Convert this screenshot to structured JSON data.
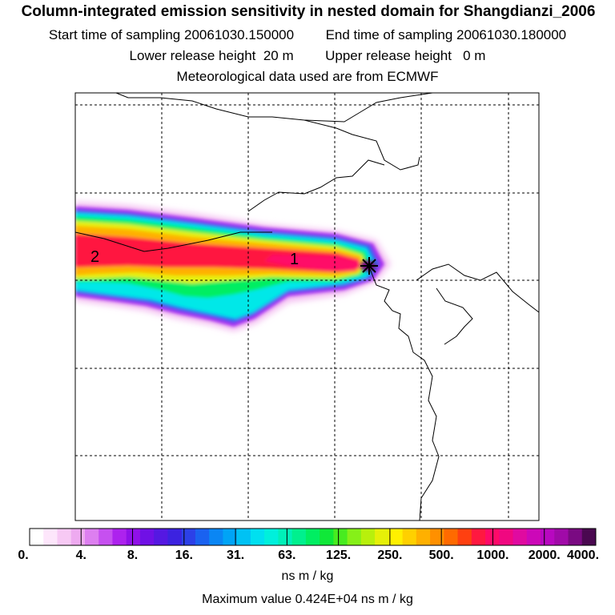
{
  "header": {
    "title": "Column-integrated emission sensitivity in nested domain for Shangdianzi_2006",
    "start_label": "Start time of sampling",
    "start_value": "20061030.150000",
    "end_label": "End time of sampling",
    "end_value": "20061030.180000",
    "lower_label": "Lower release height",
    "lower_value": "20 m",
    "upper_label": "Upper release height",
    "upper_value": "0 m",
    "met_line": "Meteorological data used are from ECMWF"
  },
  "chart_data": {
    "type": "heatmap",
    "title": "Column-integrated emission sensitivity in nested domain for Shangdianzi_2006",
    "quantity": "column-integrated emission sensitivity",
    "units": "ns m / kg",
    "scale": "logarithmic",
    "colorbar_ticks": [
      "0.",
      "4.",
      "8.",
      "16.",
      "31.",
      "63.",
      "125.",
      "250.",
      "500.",
      "1000.",
      "2000.",
      "4000."
    ],
    "colorbar_colors": [
      "#ffffff",
      "#fde6fb",
      "#f7c9f4",
      "#eeaaf0",
      "#dd7ff0",
      "#c650f0",
      "#ad22ee",
      "#9010e8",
      "#7010e6",
      "#5518e2",
      "#3c22e0",
      "#2c40e8",
      "#1a62f0",
      "#0a86f4",
      "#00a4f6",
      "#00c2f4",
      "#00e0f0",
      "#00f0dc",
      "#00f0b8",
      "#00f08e",
      "#00ee62",
      "#10e838",
      "#48ec20",
      "#86f018",
      "#b8f00c",
      "#e6f008",
      "#fff000",
      "#ffd000",
      "#ffb000",
      "#ff9000",
      "#ff6a00",
      "#ff4010",
      "#ff1840",
      "#ff0a68",
      "#f00880",
      "#e00aa0",
      "#cc08b8",
      "#b808c0",
      "#a00aa8",
      "#7a0a82",
      "#4a0850"
    ],
    "maximum_value": "0.424E+04",
    "max_line": "Maximum value  0.424E+04 ns m / kg",
    "units_line": "ns m / kg",
    "receptor": "Shangdianzi",
    "region_labels": [
      "2",
      "1"
    ],
    "plume": {
      "direction": "westward from receptor",
      "peak_value_at_receptor": 4240,
      "core_band_values": "1000-2000",
      "southern_lobe_values": "31-125"
    }
  }
}
